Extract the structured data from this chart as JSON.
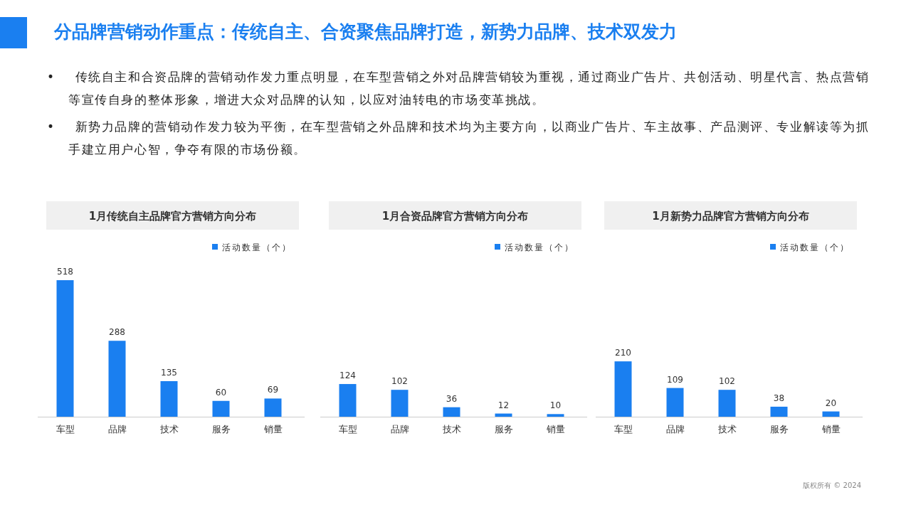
{
  "chart_data": [
    {
      "type": "other",
      "title": "分品牌营销动作重点：传统自主、合资聚焦品牌打造，新势力品牌、技术双发力",
      "annotations": [
        "•    传统自主和合资品牌的营销动作发力重点明显，在车型营销之外对品牌营销较为重视，通过商业广告片、共创活动、明星代言、热点营销等宣传自身的整体形象，增进大众对品牌的认知，以应对油转电的市场变革挑战。",
        "•    新势力品牌的营销动作发力较为平衡，在车型营销之外品牌和技术均为主要方向，以商业广告片、车主故事、产品测评、专业解读等为抓手建立用户心智，争夺有限的市场份额。",
        "版权所有 © 2024"
      ]
    },
    {
      "type": "bar",
      "title": "1月传统自主品牌官方营销方向分布",
      "categories": [
        "车型",
        "品牌",
        "技术",
        "服务",
        "销量"
      ],
      "series": [
        {
          "name": "活动数量（个）",
          "color": "#1a7ff0",
          "values": [
            518,
            288,
            135,
            60,
            69
          ]
        }
      ],
      "data_labels": true,
      "legend": "top right"
    },
    {
      "type": "bar",
      "title": "1月合资品牌官方营销方向分布",
      "categories": [
        "车型",
        "品牌",
        "技术",
        "服务",
        "销量"
      ],
      "series": [
        {
          "name": "活动数量（个）",
          "color": "#1a7ff0",
          "values": [
            124,
            102,
            36,
            12,
            10
          ]
        }
      ],
      "data_labels": true,
      "legend": "top right"
    },
    {
      "type": "bar",
      "title": "1月新势力品牌官方营销方向分布",
      "categories": [
        "车型",
        "品牌",
        "技术",
        "服务",
        "销量"
      ],
      "series": [
        {
          "name": "活动数量（个）",
          "color": "#1a7ff0",
          "values": [
            210,
            109,
            102,
            38,
            20
          ]
        }
      ],
      "data_labels": true,
      "legend": "top right"
    }
  ]
}
